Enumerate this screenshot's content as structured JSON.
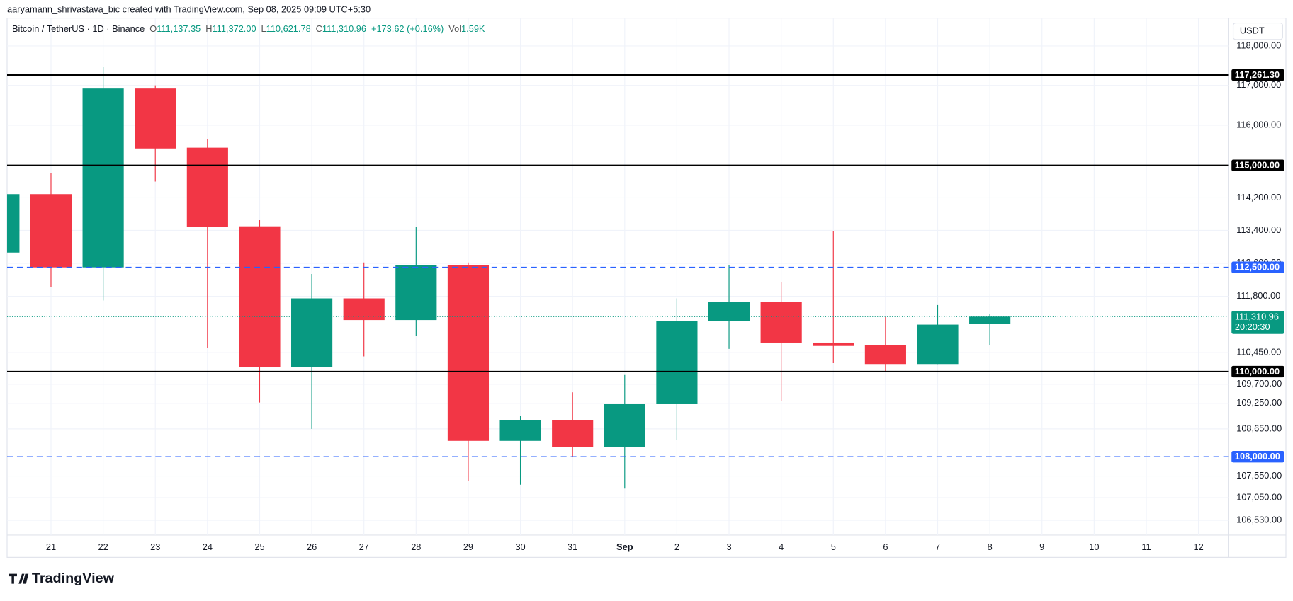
{
  "top_bar": {
    "text": "aaryamann_shrivastava_bic created with TradingView.com, Sep 08, 2025 09:09 UTC+5:30"
  },
  "header": {
    "symbol": "Bitcoin / TetherUS · 1D · Binance",
    "ohlc": [
      {
        "label": "O",
        "value": "111,137.35"
      },
      {
        "label": "H",
        "value": "111,372.00"
      },
      {
        "label": "L",
        "value": "110,621.78"
      },
      {
        "label": "C",
        "value": "111,310.96"
      }
    ],
    "change": "+173.62 (+0.16%)",
    "volume_label": "Vol",
    "volume": "1.59K"
  },
  "currency": "USDT",
  "logo": "TradingView",
  "chart_data": {
    "type": "candlestick",
    "log": true,
    "grid": true,
    "up_color": "#089981",
    "down_color": "#f23645",
    "categories": [
      null,
      "21",
      "22",
      "23",
      "24",
      "25",
      "26",
      "27",
      "28",
      "29",
      "30",
      "31",
      "Sep",
      "2",
      "3",
      "4",
      "5",
      "6",
      "7",
      "8",
      "9",
      "10",
      "11",
      "12"
    ],
    "open": [
      112860,
      114290,
      112500,
      116920,
      115440,
      113500,
      110100,
      111750,
      111230,
      112560,
      108370,
      108860,
      108230,
      109230,
      111210,
      111670,
      110690,
      110630,
      110180,
      111137.35,
      null,
      null,
      null,
      null
    ],
    "high": [
      114290,
      114810,
      117470,
      117000,
      115660,
      113650,
      112340,
      112620,
      113480,
      112620,
      108950,
      109510,
      109920,
      111750,
      112560,
      112150,
      113390,
      111300,
      111590,
      111372,
      null,
      null,
      null,
      null
    ],
    "low": [
      112860,
      112020,
      111700,
      114600,
      110560,
      109270,
      108650,
      110360,
      110850,
      107440,
      107350,
      108000,
      107260,
      108390,
      110540,
      109310,
      110200,
      110000,
      110180,
      110621.78,
      null,
      null,
      null,
      null
    ],
    "close": [
      114290,
      112500,
      116920,
      115420,
      113480,
      110100,
      111750,
      111230,
      112560,
      108370,
      108860,
      108230,
      109230,
      111210,
      111670,
      110690,
      110610,
      110180,
      111120,
      111310.96,
      null,
      null,
      null,
      null
    ],
    "ylim": [
      106190,
      118710
    ],
    "yticks": [
      {
        "value": 118000,
        "label": "118,000.00"
      },
      {
        "value": 117000,
        "label": "117,000.00"
      },
      {
        "value": 116000,
        "label": "116,000.00"
      },
      {
        "value": 114200,
        "label": "114,200.00"
      },
      {
        "value": 113400,
        "label": "113,400.00"
      },
      {
        "value": 112600,
        "label": "112,600.00"
      },
      {
        "value": 111800,
        "label": "111,800.00"
      },
      {
        "value": 110450,
        "label": "110,450.00"
      },
      {
        "value": 109700,
        "label": "109,700.00"
      },
      {
        "value": 109250,
        "label": "109,250.00"
      },
      {
        "value": 108650,
        "label": "108,650.00"
      },
      {
        "value": 107550,
        "label": "107,550.00"
      },
      {
        "value": 107050,
        "label": "107,050.00"
      },
      {
        "value": 106530,
        "label": "106,530.00"
      }
    ],
    "levels": [
      {
        "value": 117261.3,
        "label": "117,261.30",
        "style": "solid",
        "color": "#000000"
      },
      {
        "value": 115000,
        "label": "115,000.00",
        "style": "solid",
        "color": "#000000"
      },
      {
        "value": 112500,
        "label": "112,500.00",
        "style": "dashed",
        "color": "#2962ff"
      },
      {
        "value": 110000,
        "label": "110,000.00",
        "style": "solid",
        "color": "#000000"
      },
      {
        "value": 108000,
        "label": "108,000.00",
        "style": "dashed",
        "color": "#2962ff"
      }
    ],
    "last_price": {
      "value": 111310.96,
      "label": "111,310.96",
      "countdown": "20:20:30",
      "color": "#089981"
    }
  }
}
